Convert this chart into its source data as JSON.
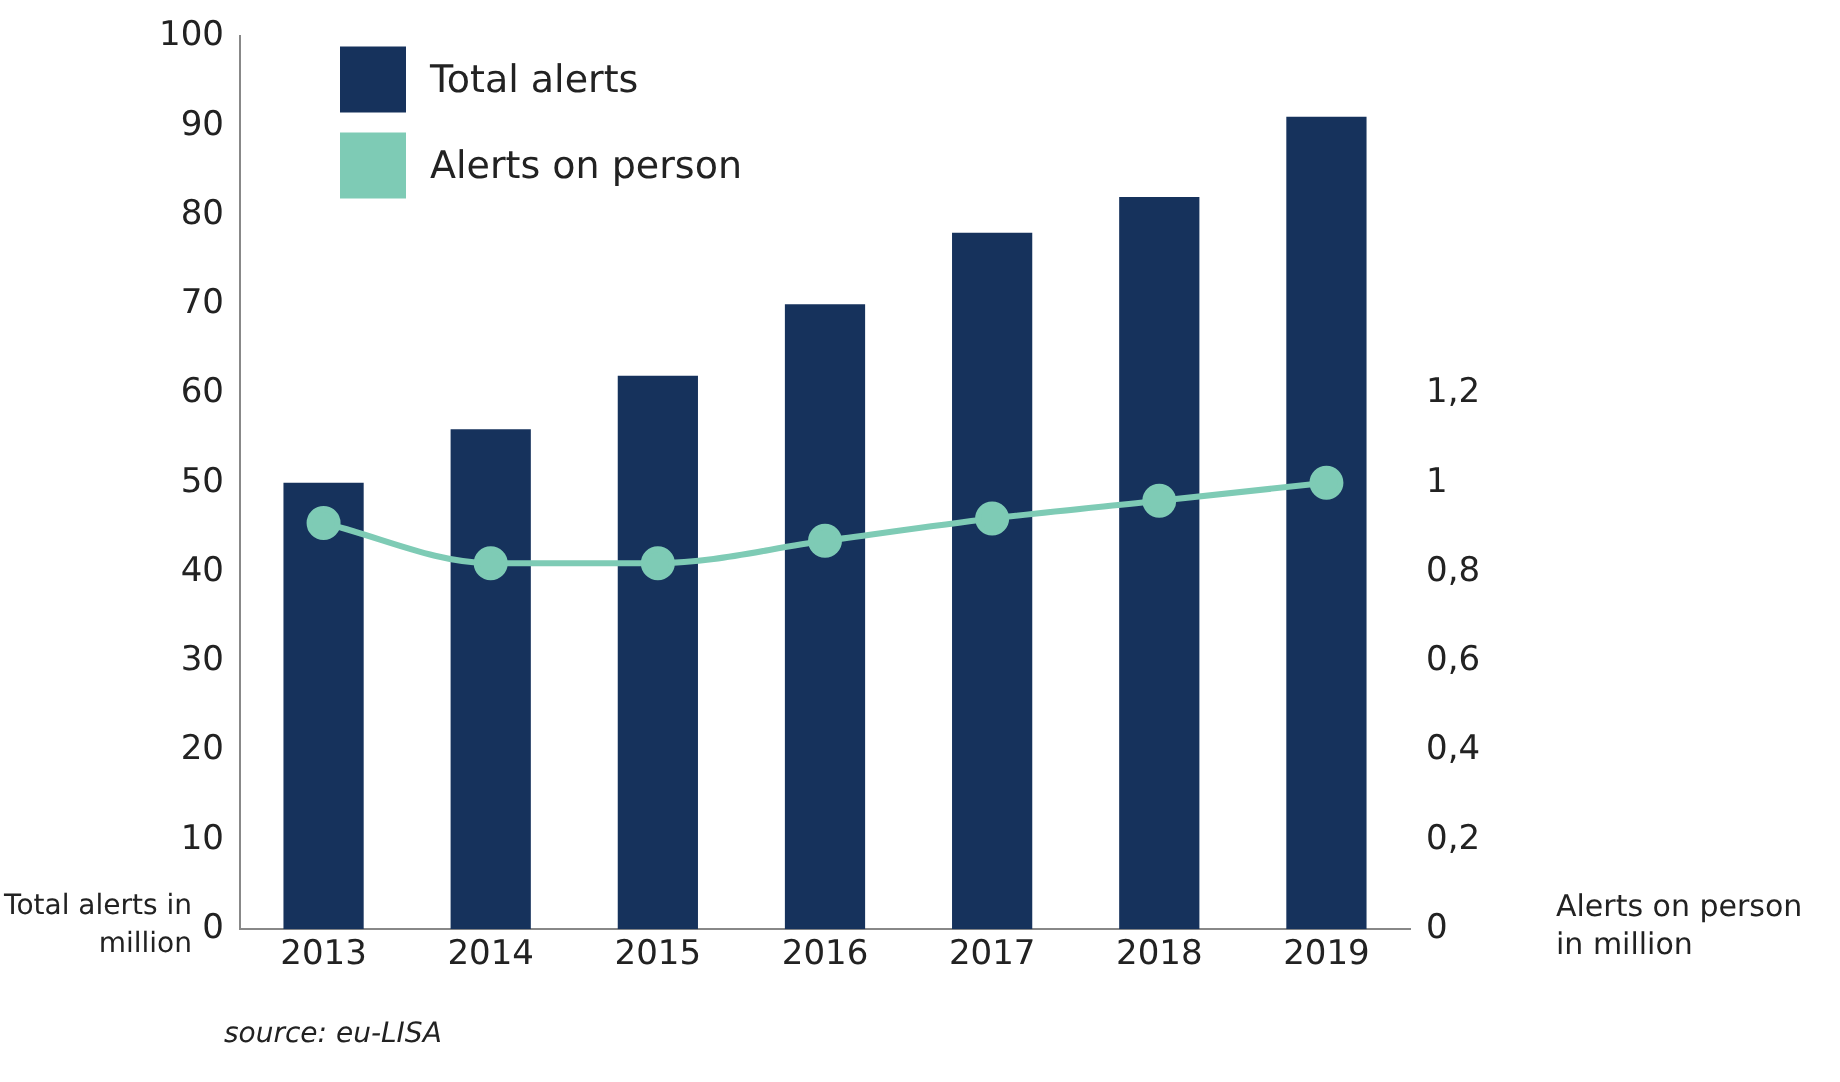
{
  "chart_data": {
    "type": "bar",
    "categories": [
      "2013",
      "2014",
      "2015",
      "2016",
      "2017",
      "2018",
      "2019"
    ],
    "series": [
      {
        "name": "Total alerts",
        "color": "#16325c",
        "values": [
          50,
          56,
          62,
          70,
          78,
          82,
          91
        ]
      },
      {
        "name": "Alerts on person",
        "type": "line",
        "axis": "y2",
        "color": "#7ecbb5",
        "values": [
          0.91,
          0.82,
          0.82,
          0.87,
          0.92,
          0.96,
          1.0
        ]
      }
    ],
    "ylabel": "Total alerts in million",
    "y2label": "Alerts on person in million",
    "ylim": [
      0,
      100
    ],
    "yticks": [
      0,
      10,
      20,
      30,
      40,
      50,
      60,
      70,
      80,
      90,
      100
    ],
    "y2lim": [
      0,
      2
    ],
    "y2ticks": [
      0,
      {
        "value": 0.2,
        "label": "0,2"
      },
      {
        "value": 0.4,
        "label": "0,4"
      },
      {
        "value": 0.6,
        "label": "0,6"
      },
      {
        "value": 0.8,
        "label": "0,8"
      },
      1,
      {
        "value": 1.2,
        "label": "1,2"
      }
    ],
    "legend": "top left",
    "marker": "circle",
    "grid": false,
    "annotations": [
      "source: eu-LISA"
    ]
  }
}
